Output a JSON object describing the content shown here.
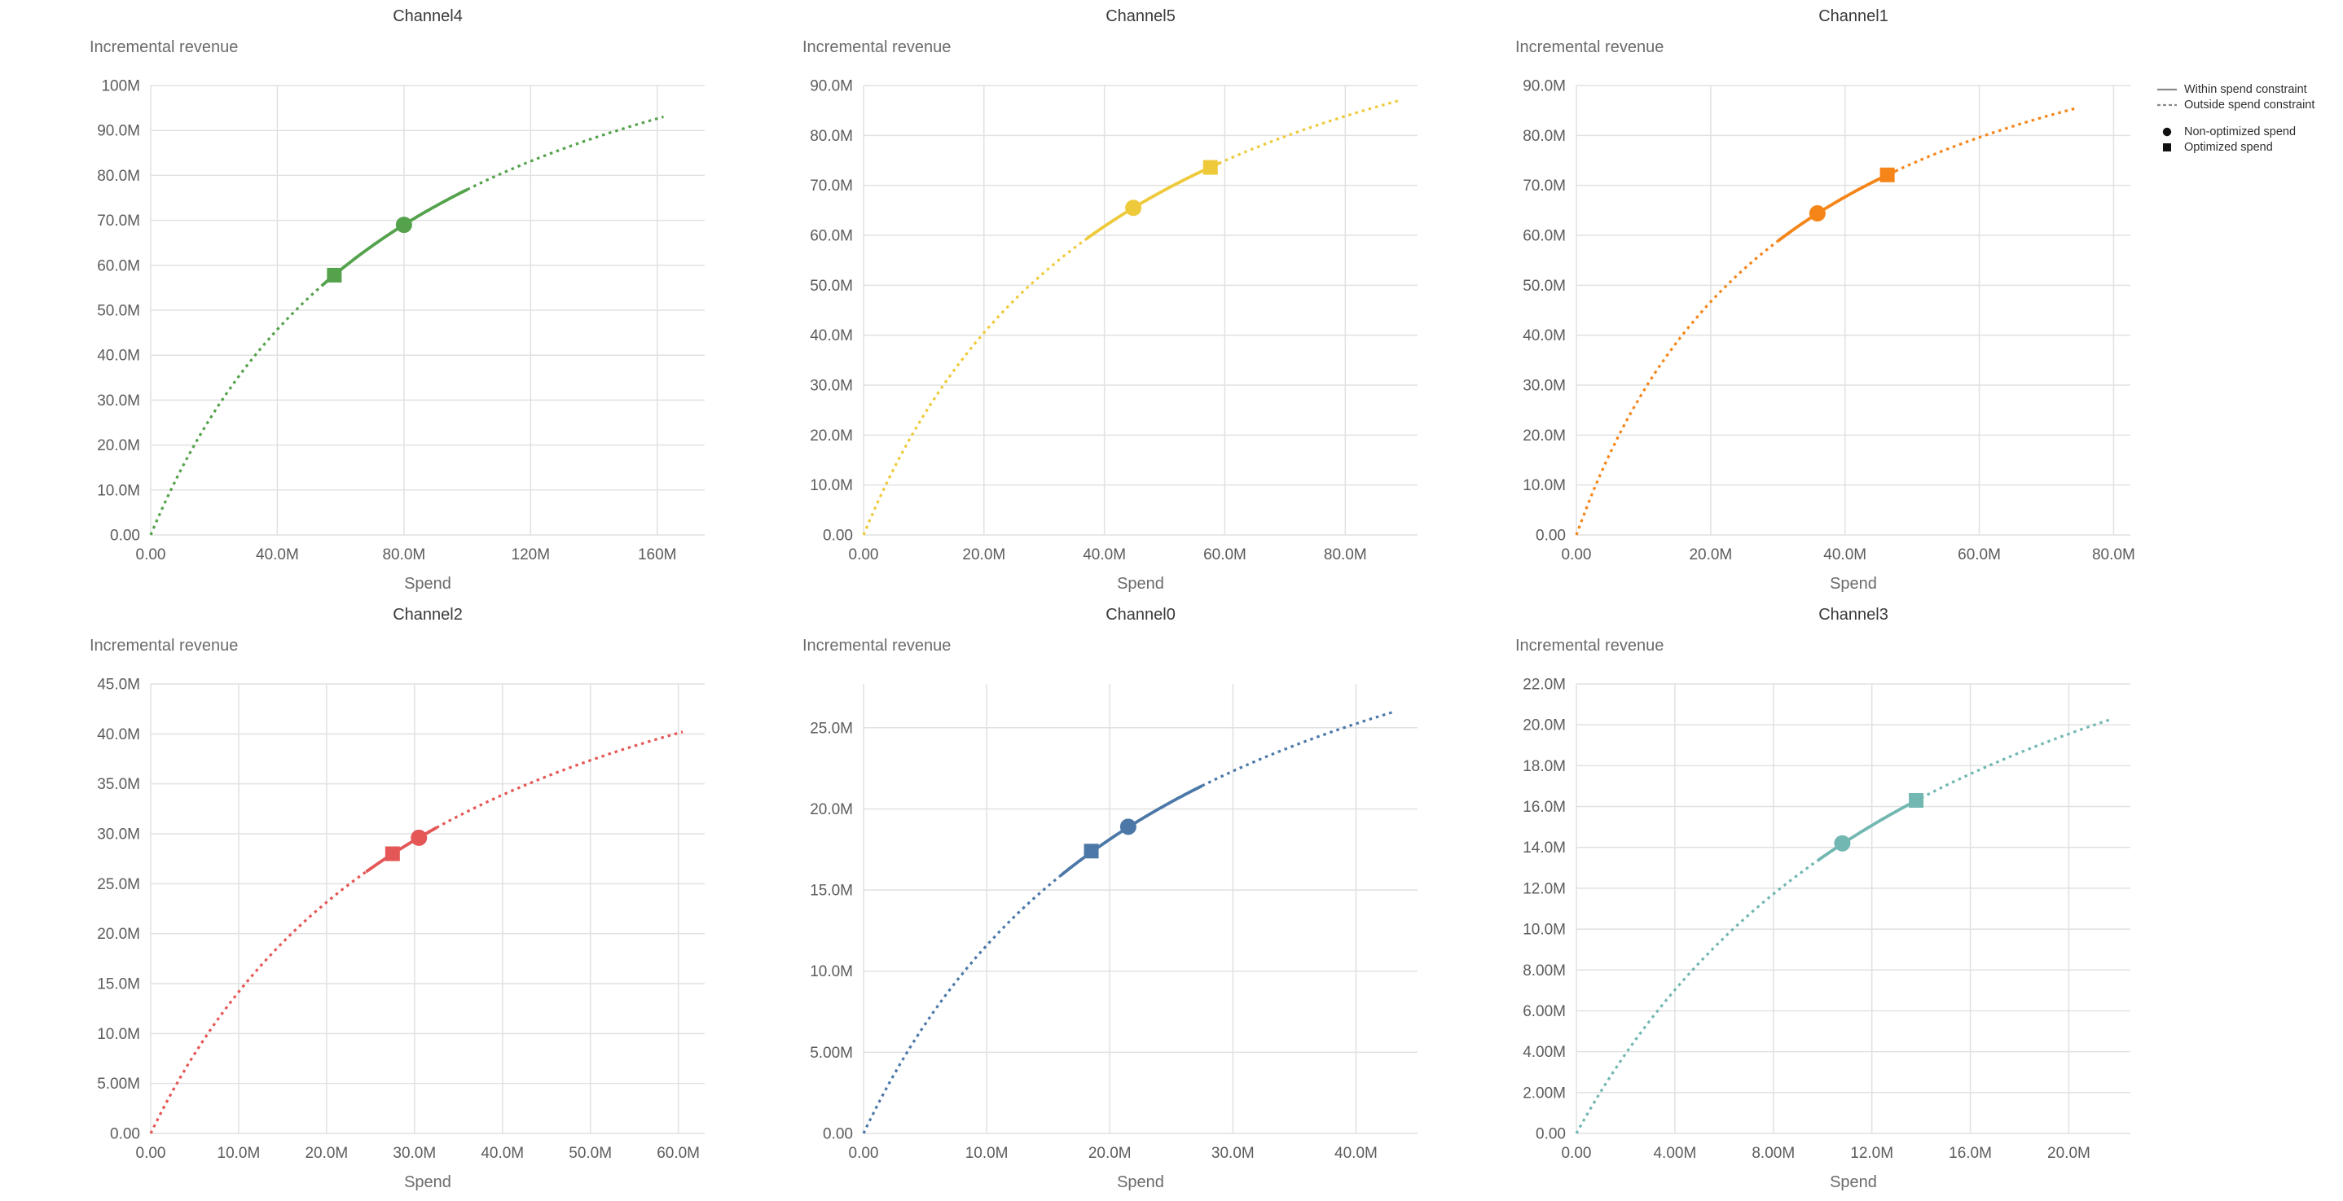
{
  "page": {
    "background": "#ffffff"
  },
  "legend": {
    "items": [
      {
        "symbol": "solid-line",
        "label": "Within spend constraint"
      },
      {
        "symbol": "dashed-line",
        "label": "Outside spend constraint"
      },
      {
        "symbol": "filled-circle",
        "label": "Non-optimized spend"
      },
      {
        "symbol": "filled-square",
        "label": "Optimized spend"
      }
    ]
  },
  "chart_data": [
    {
      "type": "line",
      "title": "Channel4",
      "xlabel": "Spend",
      "ylabel": "Incremental revenue",
      "color": "#54a24b",
      "units": "millions",
      "xlim": [
        0,
        175
      ],
      "ylim": [
        0,
        100
      ],
      "x_ticks": [
        {
          "v": 0,
          "label": "0.00"
        },
        {
          "v": 40,
          "label": "40.0M"
        },
        {
          "v": 80,
          "label": "80.0M"
        },
        {
          "v": 120,
          "label": "120M"
        },
        {
          "v": 160,
          "label": "160M"
        }
      ],
      "y_ticks": [
        {
          "v": 0,
          "label": "0.00"
        },
        {
          "v": 10,
          "label": "10.0M"
        },
        {
          "v": 20,
          "label": "20.0M"
        },
        {
          "v": 30,
          "label": "30.0M"
        },
        {
          "v": 40,
          "label": "40.0M"
        },
        {
          "v": 50,
          "label": "50.0M"
        },
        {
          "v": 60,
          "label": "60.0M"
        },
        {
          "v": 70,
          "label": "70.0M"
        },
        {
          "v": 80,
          "label": "80.0M"
        },
        {
          "v": 90,
          "label": "90.0M"
        },
        {
          "v": 100,
          "label": "100M"
        }
      ],
      "curve": {
        "model": "y = A*x/(x+B)",
        "A": 140.8,
        "B": 83.2,
        "x_end": 162,
        "y_end": 93.0
      },
      "solid_spend_range": [
        54,
        100
      ],
      "points": {
        "non_optimized": {
          "x": 80,
          "y": 69.0,
          "marker": "circle"
        },
        "optimized": {
          "x": 58,
          "y": 57.8,
          "marker": "square"
        }
      }
    },
    {
      "type": "line",
      "title": "Channel5",
      "xlabel": "Spend",
      "ylabel": "Incremental revenue",
      "color": "#eeca3b",
      "units": "millions",
      "xlim": [
        0,
        92
      ],
      "ylim": [
        0,
        90
      ],
      "x_ticks": [
        {
          "v": 0,
          "label": "0.00"
        },
        {
          "v": 20,
          "label": "20.0M"
        },
        {
          "v": 40,
          "label": "40.0M"
        },
        {
          "v": 60,
          "label": "60.0M"
        },
        {
          "v": 80,
          "label": "80.0M"
        }
      ],
      "y_ticks": [
        {
          "v": 0,
          "label": "0.00"
        },
        {
          "v": 10,
          "label": "10.0M"
        },
        {
          "v": 20,
          "label": "20.0M"
        },
        {
          "v": 30,
          "label": "30.0M"
        },
        {
          "v": 40,
          "label": "40.0M"
        },
        {
          "v": 50,
          "label": "50.0M"
        },
        {
          "v": 60,
          "label": "60.0M"
        },
        {
          "v": 70,
          "label": "70.0M"
        },
        {
          "v": 80,
          "label": "80.0M"
        },
        {
          "v": 90,
          "label": "90.0M"
        }
      ],
      "curve": {
        "model": "y = A*x/(x+B)",
        "A": 130.4,
        "B": 44.4,
        "x_end": 89,
        "y_end": 87.0
      },
      "solid_spend_range": [
        37,
        59
      ],
      "points": {
        "non_optimized": {
          "x": 44.8,
          "y": 65.5,
          "marker": "circle"
        },
        "optimized": {
          "x": 57.6,
          "y": 73.6,
          "marker": "square"
        }
      }
    },
    {
      "type": "line",
      "title": "Channel1",
      "xlabel": "Spend",
      "ylabel": "Incremental revenue",
      "color": "#f58518",
      "units": "millions",
      "xlim": [
        0,
        82.5
      ],
      "ylim": [
        0,
        90
      ],
      "x_ticks": [
        {
          "v": 0,
          "label": "0.00"
        },
        {
          "v": 20,
          "label": "20.0M"
        },
        {
          "v": 40,
          "label": "40.0M"
        },
        {
          "v": 60,
          "label": "60.0M"
        },
        {
          "v": 80,
          "label": "80.0M"
        }
      ],
      "y_ticks": [
        {
          "v": 0,
          "label": "0.00"
        },
        {
          "v": 10,
          "label": "10.0M"
        },
        {
          "v": 20,
          "label": "20.0M"
        },
        {
          "v": 30,
          "label": "30.0M"
        },
        {
          "v": 40,
          "label": "40.0M"
        },
        {
          "v": 50,
          "label": "50.0M"
        },
        {
          "v": 60,
          "label": "60.0M"
        },
        {
          "v": 70,
          "label": "70.0M"
        },
        {
          "v": 80,
          "label": "80.0M"
        },
        {
          "v": 90,
          "label": "90.0M"
        }
      ],
      "curve": {
        "model": "y = A*x/(x+B)",
        "A": 123.0,
        "B": 32.7,
        "x_end": 74.5,
        "y_end": 85.5
      },
      "solid_spend_range": [
        30,
        47.5
      ],
      "points": {
        "non_optimized": {
          "x": 35.9,
          "y": 64.4,
          "marker": "circle"
        },
        "optimized": {
          "x": 46.3,
          "y": 72.1,
          "marker": "square"
        }
      }
    },
    {
      "type": "line",
      "title": "Channel2",
      "xlabel": "Spend",
      "ylabel": "Incremental revenue",
      "color": "#e45756",
      "units": "millions",
      "xlim": [
        0,
        63
      ],
      "ylim": [
        0,
        45
      ],
      "x_ticks": [
        {
          "v": 0,
          "label": "0.00"
        },
        {
          "v": 10,
          "label": "10.0M"
        },
        {
          "v": 20,
          "label": "20.0M"
        },
        {
          "v": 30,
          "label": "30.0M"
        },
        {
          "v": 40,
          "label": "40.0M"
        },
        {
          "v": 50,
          "label": "50.0M"
        },
        {
          "v": 60,
          "label": "60.0M"
        }
      ],
      "y_ticks": [
        {
          "v": 0,
          "label": "0.00"
        },
        {
          "v": 5,
          "label": "5.00M"
        },
        {
          "v": 10,
          "label": "10.0M"
        },
        {
          "v": 15,
          "label": "15.0M"
        },
        {
          "v": 20,
          "label": "20.0M"
        },
        {
          "v": 25,
          "label": "25.0M"
        },
        {
          "v": 30,
          "label": "30.0M"
        },
        {
          "v": 35,
          "label": "35.0M"
        },
        {
          "v": 40,
          "label": "40.0M"
        },
        {
          "v": 45,
          "label": "45.0M"
        }
      ],
      "curve": {
        "model": "y = A*x/(x+B)",
        "A": 63.2,
        "B": 34.6,
        "x_end": 60.5,
        "y_end": 40.2
      },
      "solid_spend_range": [
        24.5,
        32.5
      ],
      "points": {
        "non_optimized": {
          "x": 30.5,
          "y": 29.6,
          "marker": "circle"
        },
        "optimized": {
          "x": 27.5,
          "y": 28.0,
          "marker": "square"
        }
      }
    },
    {
      "type": "line",
      "title": "Channel0",
      "xlabel": "Spend",
      "ylabel": "Incremental revenue",
      "color": "#4c78a8",
      "units": "millions",
      "xlim": [
        0,
        45
      ],
      "ylim": [
        0,
        27.7
      ],
      "x_ticks": [
        {
          "v": 0,
          "label": "0.00"
        },
        {
          "v": 10,
          "label": "10.0M"
        },
        {
          "v": 20,
          "label": "20.0M"
        },
        {
          "v": 30,
          "label": "30.0M"
        },
        {
          "v": 40,
          "label": "40.0M"
        }
      ],
      "y_ticks": [
        {
          "v": 0,
          "label": "0.00"
        },
        {
          "v": 5,
          "label": "5.00M"
        },
        {
          "v": 10,
          "label": "10.0M"
        },
        {
          "v": 15,
          "label": "15.0M"
        },
        {
          "v": 20,
          "label": "20.0M"
        },
        {
          "v": 25,
          "label": "25.0M"
        }
      ],
      "curve": {
        "model": "y = A*x/(x+B)",
        "A": 41.6,
        "B": 25.9,
        "x_end": 43,
        "y_end": 26.0
      },
      "solid_spend_range": [
        16,
        27.5
      ],
      "points": {
        "non_optimized": {
          "x": 21.5,
          "y": 18.9,
          "marker": "circle"
        },
        "optimized": {
          "x": 18.5,
          "y": 17.4,
          "marker": "square"
        }
      }
    },
    {
      "type": "line",
      "title": "Channel3",
      "xlabel": "Spend",
      "ylabel": "Incremental revenue",
      "color": "#72b7b2",
      "units": "millions",
      "xlim": [
        0,
        22.5
      ],
      "ylim": [
        0,
        22
      ],
      "x_ticks": [
        {
          "v": 0,
          "label": "0.00"
        },
        {
          "v": 4,
          "label": "4.00M"
        },
        {
          "v": 8,
          "label": "8.00M"
        },
        {
          "v": 12,
          "label": "12.0M"
        },
        {
          "v": 16,
          "label": "16.0M"
        },
        {
          "v": 20,
          "label": "20.0M"
        }
      ],
      "y_ticks": [
        {
          "v": 0,
          "label": "0.00"
        },
        {
          "v": 2,
          "label": "2.00M"
        },
        {
          "v": 4,
          "label": "4.00M"
        },
        {
          "v": 6,
          "label": "6.00M"
        },
        {
          "v": 8,
          "label": "8.00M"
        },
        {
          "v": 10,
          "label": "10.0M"
        },
        {
          "v": 12,
          "label": "12.0M"
        },
        {
          "v": 14,
          "label": "14.0M"
        },
        {
          "v": 16,
          "label": "16.0M"
        },
        {
          "v": 18,
          "label": "18.0M"
        },
        {
          "v": 20,
          "label": "20.0M"
        },
        {
          "v": 22,
          "label": "22.0M"
        }
      ],
      "curve": {
        "model": "y = A*x/(x+B)",
        "A": 35.3,
        "B": 16.1,
        "x_end": 21.7,
        "y_end": 20.3
      },
      "solid_spend_range": [
        9.8,
        14.0
      ],
      "points": {
        "non_optimized": {
          "x": 10.8,
          "y": 14.2,
          "marker": "circle"
        },
        "optimized": {
          "x": 13.8,
          "y": 16.3,
          "marker": "square"
        }
      }
    }
  ]
}
